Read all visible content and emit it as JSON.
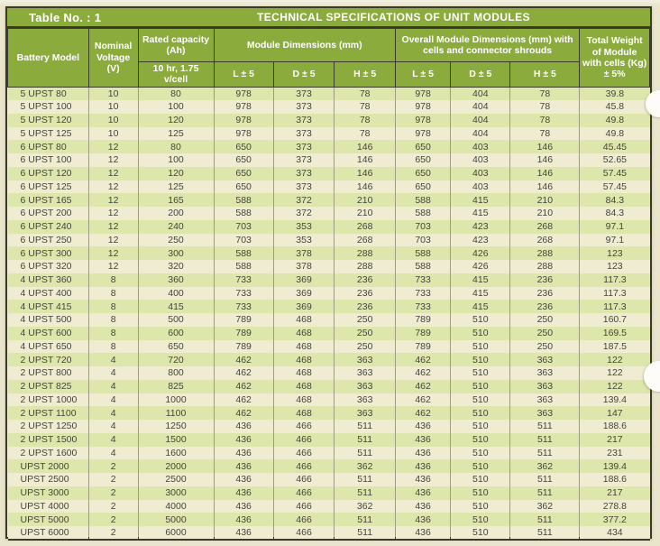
{
  "document": {
    "table_no": "Table No. : 1",
    "title": "TECHNICAL SPECIFICATIONS OF UNIT MODULES"
  },
  "header": {
    "battery_model": "Battery Model",
    "nominal_voltage": "Nominal Voltage (V)",
    "rated_capacity": "Rated capacity (Ah)",
    "capacity_condition": "10 hr, 1.75 v/cell",
    "module_dims": "Module Dimensions (mm)",
    "overall_dims": "Overall Module Dimensions (mm) with cells and connector shrouds",
    "dim_subcols": [
      "L ± 5",
      "D ± 5",
      "H ± 5"
    ],
    "total_weight": "Total Weight of Module with cells (Kg) ± 5%"
  },
  "colors": {
    "header_green": "#8cab3d",
    "row_green": "#dde7ab",
    "row_cream": "#efecd2",
    "border_dark": "#3b3a2a"
  },
  "rows": [
    [
      "5 UPST 80",
      "10",
      "80",
      "978",
      "373",
      "78",
      "978",
      "404",
      "78",
      "39.8"
    ],
    [
      "5 UPST 100",
      "10",
      "100",
      "978",
      "373",
      "78",
      "978",
      "404",
      "78",
      "45.8"
    ],
    [
      "5 UPST 120",
      "10",
      "120",
      "978",
      "373",
      "78",
      "978",
      "404",
      "78",
      "49.8"
    ],
    [
      "5 UPST 125",
      "10",
      "125",
      "978",
      "373",
      "78",
      "978",
      "404",
      "78",
      "49.8"
    ],
    [
      "6 UPST 80",
      "12",
      "80",
      "650",
      "373",
      "146",
      "650",
      "403",
      "146",
      "45.45"
    ],
    [
      "6 UPST 100",
      "12",
      "100",
      "650",
      "373",
      "146",
      "650",
      "403",
      "146",
      "52.65"
    ],
    [
      "6 UPST 120",
      "12",
      "120",
      "650",
      "373",
      "146",
      "650",
      "403",
      "146",
      "57.45"
    ],
    [
      "6 UPST 125",
      "12",
      "125",
      "650",
      "373",
      "146",
      "650",
      "403",
      "146",
      "57.45"
    ],
    [
      "6 UPST 165",
      "12",
      "165",
      "588",
      "372",
      "210",
      "588",
      "415",
      "210",
      "84.3"
    ],
    [
      "6 UPST 200",
      "12",
      "200",
      "588",
      "372",
      "210",
      "588",
      "415",
      "210",
      "84.3"
    ],
    [
      "6 UPST 240",
      "12",
      "240",
      "703",
      "353",
      "268",
      "703",
      "423",
      "268",
      "97.1"
    ],
    [
      "6 UPST 250",
      "12",
      "250",
      "703",
      "353",
      "268",
      "703",
      "423",
      "268",
      "97.1"
    ],
    [
      "6 UPST 300",
      "12",
      "300",
      "588",
      "378",
      "288",
      "588",
      "426",
      "288",
      "123"
    ],
    [
      "6 UPST 320",
      "12",
      "320",
      "588",
      "378",
      "288",
      "588",
      "426",
      "288",
      "123"
    ],
    [
      "4 UPST 360",
      "8",
      "360",
      "733",
      "369",
      "236",
      "733",
      "415",
      "236",
      "117.3"
    ],
    [
      "4 UPST 400",
      "8",
      "400",
      "733",
      "369",
      "236",
      "733",
      "415",
      "236",
      "117.3"
    ],
    [
      "4 UPST 415",
      "8",
      "415",
      "733",
      "369",
      "236",
      "733",
      "415",
      "236",
      "117.3"
    ],
    [
      "4 UPST 500",
      "8",
      "500",
      "789",
      "468",
      "250",
      "789",
      "510",
      "250",
      "160.7"
    ],
    [
      "4 UPST 600",
      "8",
      "600",
      "789",
      "468",
      "250",
      "789",
      "510",
      "250",
      "169.5"
    ],
    [
      "4 UPST 650",
      "8",
      "650",
      "789",
      "468",
      "250",
      "789",
      "510",
      "250",
      "187.5"
    ],
    [
      "2 UPST 720",
      "4",
      "720",
      "462",
      "468",
      "363",
      "462",
      "510",
      "363",
      "122"
    ],
    [
      "2 UPST 800",
      "4",
      "800",
      "462",
      "468",
      "363",
      "462",
      "510",
      "363",
      "122"
    ],
    [
      "2 UPST 825",
      "4",
      "825",
      "462",
      "468",
      "363",
      "462",
      "510",
      "363",
      "122"
    ],
    [
      "2 UPST 1000",
      "4",
      "1000",
      "462",
      "468",
      "363",
      "462",
      "510",
      "363",
      "139.4"
    ],
    [
      "2 UPST 1100",
      "4",
      "1100",
      "462",
      "468",
      "363",
      "462",
      "510",
      "363",
      "147"
    ],
    [
      "2 UPST 1250",
      "4",
      "1250",
      "436",
      "466",
      "511",
      "436",
      "510",
      "511",
      "188.6"
    ],
    [
      "2 UPST 1500",
      "4",
      "1500",
      "436",
      "466",
      "511",
      "436",
      "510",
      "511",
      "217"
    ],
    [
      "2 UPST 1600",
      "4",
      "1600",
      "436",
      "466",
      "511",
      "436",
      "510",
      "511",
      "231"
    ],
    [
      "UPST 2000",
      "2",
      "2000",
      "436",
      "466",
      "362",
      "436",
      "510",
      "362",
      "139.4"
    ],
    [
      "UPST 2500",
      "2",
      "2500",
      "436",
      "466",
      "511",
      "436",
      "510",
      "511",
      "188.6"
    ],
    [
      "UPST 3000",
      "2",
      "3000",
      "436",
      "466",
      "511",
      "436",
      "510",
      "511",
      "217"
    ],
    [
      "UPST 4000",
      "2",
      "4000",
      "436",
      "466",
      "362",
      "436",
      "510",
      "362",
      "278.8"
    ],
    [
      "UPST 5000",
      "2",
      "5000",
      "436",
      "466",
      "511",
      "436",
      "510",
      "511",
      "377.2"
    ],
    [
      "UPST 6000",
      "2",
      "6000",
      "436",
      "466",
      "511",
      "436",
      "510",
      "511",
      "434"
    ]
  ]
}
